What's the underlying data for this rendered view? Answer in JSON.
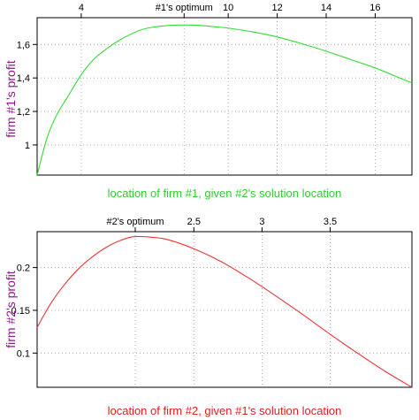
{
  "chart_data": [
    {
      "type": "line",
      "xlabel": "location of firm #1, given #2's solution location",
      "ylabel": "firm #1's profit",
      "xlim": [
        2.2,
        17.5
      ],
      "ylim": [
        0.82,
        1.76
      ],
      "x_ticks": [
        "4",
        "#1's optimum",
        "10",
        "12",
        "14",
        "16"
      ],
      "x_tick_values": [
        4,
        8.2,
        10,
        12,
        14,
        16
      ],
      "y_ticks": [
        "1",
        "1,2",
        "1,4",
        "1,6"
      ],
      "y_tick_values": [
        1.0,
        1.2,
        1.4,
        1.6
      ],
      "grid": true,
      "x_axis_position": "top",
      "series": [
        {
          "color": "#33dd33",
          "x": [
            2.2,
            2.6,
            3.0,
            3.5,
            4.0,
            4.5,
            5.0,
            5.5,
            6.0,
            6.5,
            7.0,
            7.5,
            8.0,
            8.5,
            9.0,
            9.5,
            10.0,
            11.0,
            12.0,
            13.0,
            14.0,
            15.0,
            16.0,
            17.0,
            17.5
          ],
          "y": [
            0.82,
            1.04,
            1.18,
            1.3,
            1.42,
            1.51,
            1.57,
            1.62,
            1.66,
            1.69,
            1.705,
            1.713,
            1.716,
            1.716,
            1.712,
            1.705,
            1.698,
            1.675,
            1.645,
            1.605,
            1.56,
            1.51,
            1.46,
            1.4,
            1.37
          ]
        }
      ]
    },
    {
      "type": "line",
      "xlabel": "location of firm #2, given #1's solution location",
      "ylabel": "firm #2's profit",
      "xlim": [
        1.35,
        4.1
      ],
      "ylim": [
        0.06,
        0.242
      ],
      "x_ticks": [
        "#2's optimum",
        "2.5",
        "3",
        "3.5"
      ],
      "x_tick_values": [
        2.07,
        2.5,
        3.0,
        3.5
      ],
      "y_ticks": [
        "0.1",
        "0.15",
        "0.2"
      ],
      "y_tick_values": [
        0.1,
        0.15,
        0.2
      ],
      "grid": true,
      "x_axis_position": "top",
      "series": [
        {
          "color": "#ee3333",
          "x": [
            1.35,
            1.45,
            1.55,
            1.65,
            1.75,
            1.85,
            1.95,
            2.05,
            2.15,
            2.3,
            2.5,
            2.7,
            2.9,
            3.1,
            3.3,
            3.5,
            3.7,
            3.9,
            4.1
          ],
          "y": [
            0.13,
            0.158,
            0.18,
            0.198,
            0.212,
            0.223,
            0.231,
            0.236,
            0.236,
            0.233,
            0.222,
            0.207,
            0.188,
            0.167,
            0.145,
            0.122,
            0.1,
            0.079,
            0.06
          ]
        }
      ]
    }
  ]
}
